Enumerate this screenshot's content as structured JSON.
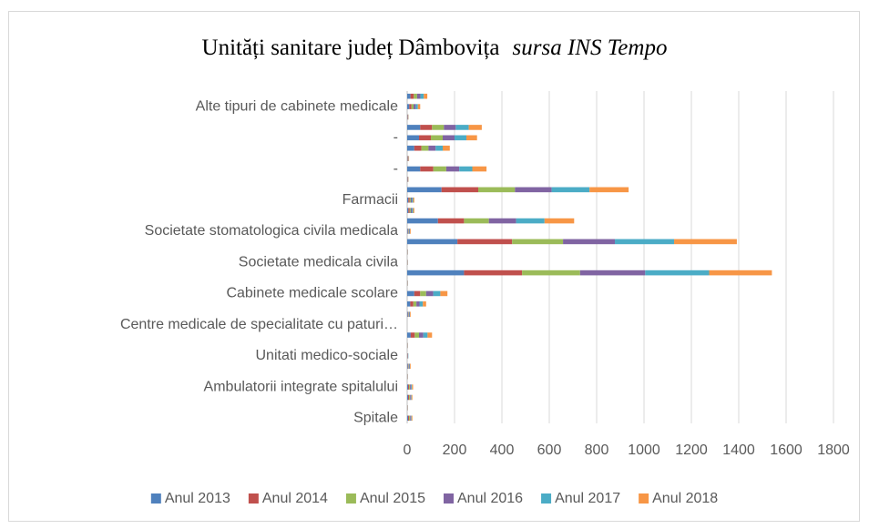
{
  "chart_data": {
    "type": "stacked-bar-horizontal",
    "title": "Unități sanitare județ Dâmbovița",
    "source": "sursa INS Tempo",
    "categories": [
      "Spitale",
      null,
      null,
      "Ambulatorii integrate spitalului",
      null,
      null,
      "Unitati medico-sociale",
      null,
      null,
      "Centre medicale de specialitate cu paturi…",
      null,
      null,
      "Cabinete medicale scolare",
      null,
      null,
      "Societate medicala civila",
      null,
      null,
      "Societate stomatologica civila medicala",
      null,
      null,
      "Farmacii",
      null,
      null,
      "-",
      null,
      null,
      "-",
      null,
      null,
      "Alte tipuri de cabinete medicale",
      null
    ],
    "series": [
      {
        "name": "Anul 2013",
        "color": "#4f81bd",
        "values": [
          4,
          0.5,
          4,
          4,
          0.5,
          3,
          1,
          0.5,
          15,
          0,
          3,
          13,
          30,
          0.5,
          240,
          0.5,
          0.5,
          212,
          3,
          130,
          5,
          5,
          145,
          1,
          55,
          1,
          30,
          50,
          55,
          1,
          9,
          14
        ]
      },
      {
        "name": "Anul 2014",
        "color": "#c0504d",
        "values": [
          4,
          0.5,
          4,
          4,
          0.5,
          2,
          1,
          0.5,
          17,
          0,
          2,
          13,
          25,
          0.5,
          245,
          0.5,
          0.5,
          231,
          2,
          110,
          5,
          5,
          155,
          1,
          55,
          1,
          30,
          50,
          50,
          1,
          9,
          14
        ]
      },
      {
        "name": "Anul 2015",
        "color": "#9bbb59",
        "values": [
          4,
          0.5,
          4,
          4,
          0.5,
          2,
          1,
          0.5,
          18,
          0,
          2,
          13,
          25,
          0.5,
          245,
          0.5,
          0.5,
          215,
          2,
          105,
          5,
          5,
          155,
          1,
          55,
          1,
          30,
          50,
          50,
          1,
          9,
          14
        ]
      },
      {
        "name": "Anul 2016",
        "color": "#8064a2",
        "values": [
          3,
          0.5,
          3,
          4,
          0.5,
          3,
          1,
          0.5,
          18,
          0,
          3,
          13,
          30,
          0.5,
          275,
          0.5,
          0.5,
          219,
          3,
          115,
          5,
          5,
          155,
          1,
          55,
          2,
          30,
          50,
          50,
          1,
          9,
          14
        ]
      },
      {
        "name": "Anul 2017",
        "color": "#4bacc6",
        "values": [
          3,
          0.5,
          3,
          4,
          0.5,
          2,
          1,
          0.5,
          18,
          0,
          2,
          14,
          30,
          0.5,
          270,
          0.5,
          0.5,
          250,
          2,
          120,
          5,
          5,
          160,
          1,
          55,
          1,
          30,
          50,
          55,
          1,
          9,
          14
        ]
      },
      {
        "name": "Anul 2018",
        "color": "#f79646",
        "values": [
          4,
          0.5,
          4,
          5,
          0.5,
          3,
          0,
          0.5,
          19,
          0,
          3,
          14,
          30,
          0.5,
          265,
          0.5,
          0.5,
          265,
          3,
          125,
          5,
          5,
          165,
          1,
          60,
          2,
          30,
          45,
          55,
          1,
          10,
          15
        ]
      }
    ],
    "xlim": [
      0,
      1800
    ],
    "xticks": [
      0,
      200,
      400,
      600,
      800,
      1000,
      1200,
      1400,
      1600,
      1800
    ],
    "grid": true,
    "legend": "bottom"
  }
}
